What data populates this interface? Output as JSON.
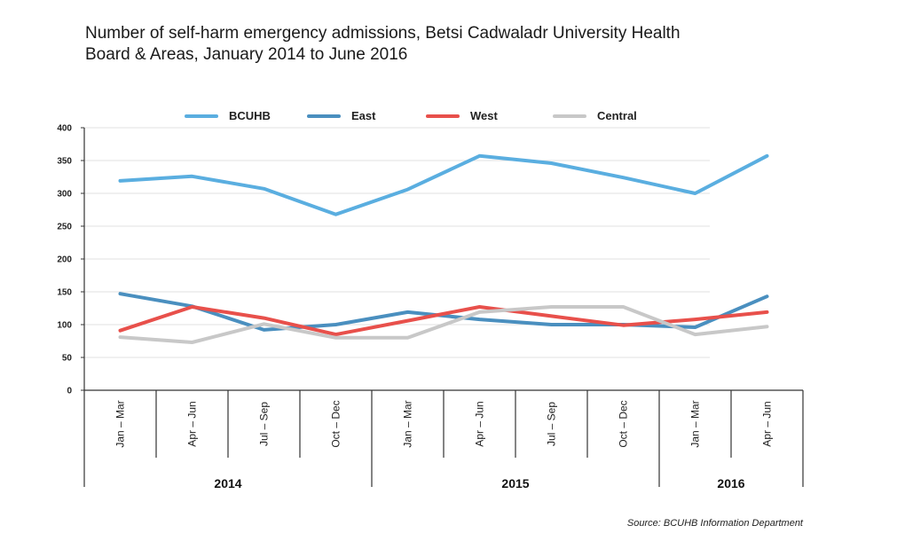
{
  "title_lines": [
    "Number of self-harm emergency admissions, Betsi Cadwaladr University Health",
    "Board & Areas, January 2014 to June 2016"
  ],
  "source": "Source: BCUHB Information Department",
  "chart_data": {
    "type": "line",
    "title": "Number of self-harm emergency admissions, Betsi Cadwaladr University Health Board & Areas, January 2014 to June 2016",
    "categories": [
      "Jan – Mar",
      "Apr – Jun",
      "Jul – Sep",
      "Oct – Dec",
      "Jan – Mar",
      "Apr – Jun",
      "Jul – Sep",
      "Oct – Dec",
      "Jan – Mar",
      "Apr – Jun"
    ],
    "years": [
      {
        "label": "2014",
        "count": 4
      },
      {
        "label": "2015",
        "count": 4
      },
      {
        "label": "2016",
        "count": 2
      }
    ],
    "ylim": [
      0,
      400
    ],
    "yticks": [
      0,
      50,
      100,
      150,
      200,
      250,
      300,
      350,
      400
    ],
    "grid": true,
    "legend_position": "top",
    "series": [
      {
        "name": "BCUHB",
        "color": "#5aaee0",
        "values": [
          319,
          326,
          307,
          268,
          306,
          357,
          346,
          324,
          300,
          357
        ]
      },
      {
        "name": "East",
        "color": "#4a8fbf",
        "values": [
          147,
          128,
          92,
          100,
          119,
          108,
          100,
          100,
          96,
          143
        ]
      },
      {
        "name": "West",
        "color": "#e8504b",
        "values": [
          91,
          127,
          110,
          85,
          106,
          127,
          113,
          99,
          108,
          119
        ]
      },
      {
        "name": "Central",
        "color": "#c8c8c8",
        "values": [
          81,
          73,
          101,
          80,
          80,
          119,
          127,
          127,
          85,
          97
        ]
      }
    ]
  }
}
